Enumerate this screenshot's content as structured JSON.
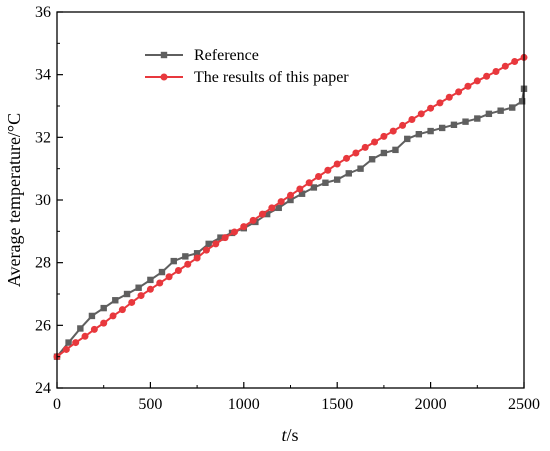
{
  "chart_data": {
    "type": "line",
    "title": "",
    "xlabel_italic": "t",
    "xlabel_unit": "/s",
    "ylabel": "Average temperature/°C",
    "xlim": [
      0,
      2500
    ],
    "ylim": [
      24,
      36
    ],
    "xticks": [
      0,
      500,
      1000,
      1500,
      2000,
      2500
    ],
    "yticks": [
      24,
      26,
      28,
      30,
      32,
      34,
      36
    ],
    "grid": false,
    "legend_position": "top-left",
    "series": [
      {
        "name": "Reference",
        "color": "#5f5f5f",
        "marker": "square",
        "x": [
          0,
          62,
          125,
          187,
          250,
          312,
          375,
          437,
          500,
          562,
          625,
          687,
          750,
          812,
          875,
          937,
          1000,
          1062,
          1125,
          1187,
          1250,
          1312,
          1375,
          1437,
          1500,
          1562,
          1625,
          1687,
          1750,
          1812,
          1875,
          1937,
          2000,
          2062,
          2125,
          2187,
          2250,
          2312,
          2375,
          2437,
          2490,
          2500
        ],
        "y": [
          25.0,
          25.45,
          25.9,
          26.3,
          26.55,
          26.8,
          27.0,
          27.2,
          27.45,
          27.7,
          28.05,
          28.2,
          28.3,
          28.6,
          28.8,
          28.95,
          29.1,
          29.3,
          29.55,
          29.75,
          30.0,
          30.2,
          30.4,
          30.55,
          30.65,
          30.85,
          31.0,
          31.3,
          31.5,
          31.6,
          31.95,
          32.1,
          32.2,
          32.3,
          32.4,
          32.5,
          32.6,
          32.75,
          32.85,
          32.95,
          33.15,
          33.55
        ]
      },
      {
        "name": "The results of this paper",
        "color": "#e8383d",
        "marker": "circle",
        "x": [
          0,
          50,
          100,
          150,
          200,
          250,
          300,
          350,
          400,
          450,
          500,
          550,
          600,
          650,
          700,
          750,
          800,
          850,
          900,
          950,
          1000,
          1050,
          1100,
          1150,
          1200,
          1250,
          1300,
          1350,
          1400,
          1450,
          1500,
          1550,
          1600,
          1650,
          1700,
          1750,
          1800,
          1850,
          1900,
          1950,
          2000,
          2050,
          2100,
          2150,
          2200,
          2250,
          2300,
          2350,
          2400,
          2450,
          2500
        ],
        "y": [
          25.0,
          25.23,
          25.45,
          25.65,
          25.87,
          26.07,
          26.3,
          26.5,
          26.73,
          26.95,
          27.15,
          27.35,
          27.55,
          27.75,
          27.95,
          28.15,
          28.4,
          28.6,
          28.8,
          28.98,
          29.15,
          29.35,
          29.55,
          29.75,
          29.95,
          30.15,
          30.35,
          30.55,
          30.75,
          30.95,
          31.15,
          31.33,
          31.5,
          31.68,
          31.85,
          32.03,
          32.2,
          32.38,
          32.57,
          32.75,
          32.93,
          33.1,
          33.28,
          33.45,
          33.63,
          33.8,
          33.95,
          34.1,
          34.27,
          34.42,
          34.55
        ]
      }
    ]
  }
}
